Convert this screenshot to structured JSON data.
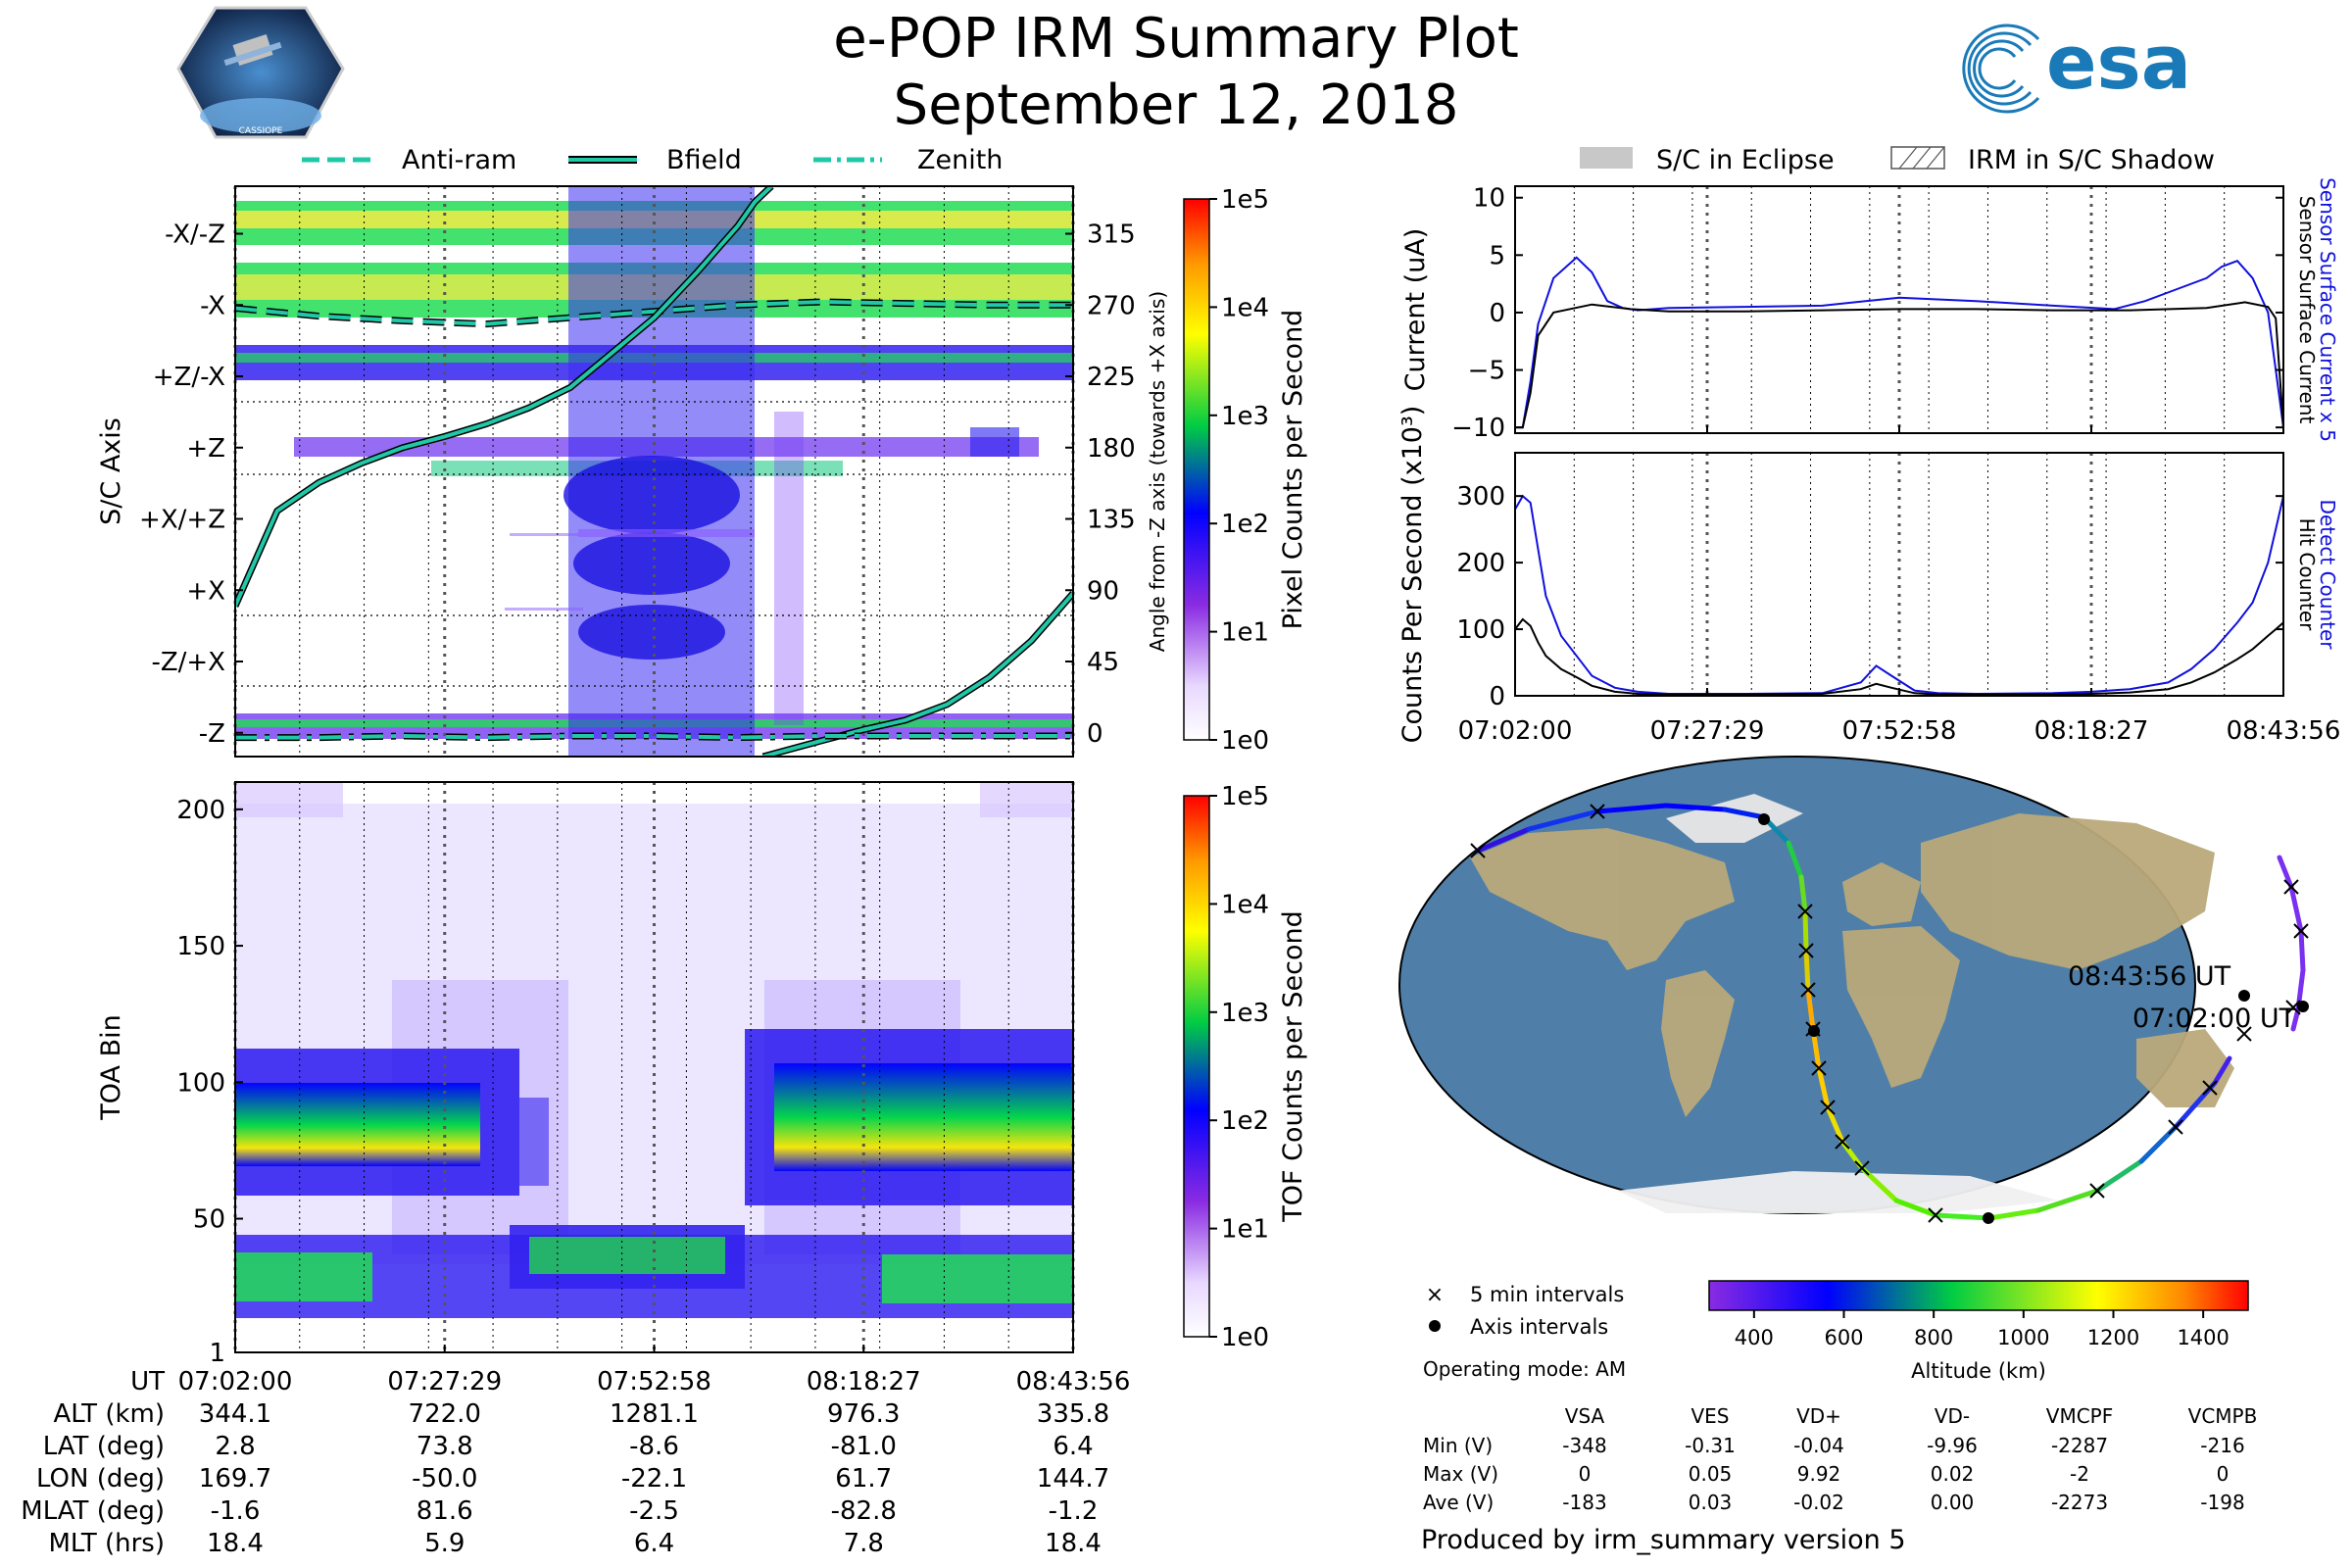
{
  "title": "e-POP IRM Summary Plot",
  "subtitle": "September 12, 2018",
  "logos": {
    "cassiope": "CASSIOPE",
    "esa": "esa"
  },
  "colors": {
    "accent": "#1a7ab8",
    "bfield": "#20c8a8",
    "current_blue": "#1010dd",
    "black": "#000000"
  },
  "chart_data": [
    {
      "id": "sc_axis_panel",
      "type": "heatmap",
      "ylabel": "S/C Axis",
      "y2label": "Angle from -Z axis (towards +X axis)",
      "colorbar_label": "Pixel Counts per Second",
      "colorbar_ticks": [
        "1e0",
        "1e1",
        "1e2",
        "1e3",
        "1e4",
        "1e5"
      ],
      "axis_labels": [
        "-X/-Z",
        "-X",
        "+Z/-X",
        "+Z",
        "+X/+Z",
        "+X",
        "-Z/+X",
        "-Z"
      ],
      "angles": [
        "315",
        "270",
        "225",
        "180",
        "135",
        "90",
        "45",
        "0"
      ],
      "ylim": [
        -15,
        345
      ],
      "legend": [
        "Anti-ram",
        "Bfield",
        "Zenith"
      ],
      "series": [
        {
          "name": "Anti-ram",
          "style": "dashed",
          "x": [
            0,
            10,
            20,
            30,
            40,
            50,
            60,
            70,
            80,
            90,
            100
          ],
          "y": [
            268,
            263,
            260,
            258,
            262,
            266,
            270,
            272,
            271,
            270,
            270
          ]
        },
        {
          "name": "Bfield",
          "style": "solid",
          "x": [
            0,
            5,
            10,
            15,
            20,
            25,
            30,
            35,
            40,
            45,
            50,
            55,
            60,
            62,
            64
          ],
          "y": [
            80,
            140,
            158,
            170,
            180,
            187,
            195,
            205,
            218,
            240,
            262,
            290,
            320,
            335,
            345
          ]
        },
        {
          "name": "Bfield",
          "style": "solid",
          "x": [
            63,
            70,
            75,
            80,
            85,
            90,
            95,
            100
          ],
          "y": [
            -15,
            -5,
            2,
            8,
            18,
            35,
            58,
            88
          ]
        },
        {
          "name": "Zenith",
          "style": "dashdot",
          "x": [
            0,
            10,
            20,
            30,
            40,
            50,
            60,
            70,
            80,
            90,
            100
          ],
          "y": [
            -3,
            -3,
            -2,
            -3,
            -2,
            -2,
            -3,
            -2,
            -2,
            -2,
            -2
          ]
        }
      ]
    },
    {
      "id": "toa_panel",
      "type": "heatmap",
      "ylabel": "TOA Bin",
      "colorbar_label": "TOF Counts per Second",
      "colorbar_ticks": [
        "1e0",
        "1e1",
        "1e2",
        "1e3",
        "1e4",
        "1e5"
      ],
      "yticks": [
        "1",
        "50",
        "100",
        "150",
        "200"
      ],
      "ylim": [
        1,
        210
      ],
      "xticks": [
        "07:02:00",
        "07:27:29",
        "07:52:58",
        "08:18:27",
        "08:43:56"
      ]
    },
    {
      "id": "current_panel",
      "type": "line",
      "ylabel": "Current (uA)",
      "y2label_blue": "Sensor Surface Current x 5",
      "y2label_black": "Sensor Surface Current",
      "yticks": [
        "10",
        "5",
        "0",
        "−5",
        "−10"
      ],
      "ylim": [
        -10.5,
        11
      ],
      "series": [
        {
          "name": "Sensor Surface Current x 5",
          "color": "#1010dd",
          "x": [
            0,
            1,
            2,
            3,
            5,
            8,
            10,
            12,
            14,
            16,
            20,
            30,
            40,
            50,
            60,
            70,
            78,
            82,
            86,
            90,
            92,
            94,
            96,
            98,
            99,
            100
          ],
          "y": [
            -10,
            -10,
            -6,
            -1,
            3,
            4.8,
            3.5,
            1,
            0.4,
            0.2,
            0.4,
            0.5,
            0.6,
            1.3,
            1,
            0.6,
            0.3,
            1,
            2,
            3,
            4,
            4.5,
            3,
            0,
            -5,
            -10
          ]
        },
        {
          "name": "Sensor Surface Current",
          "color": "#000000",
          "x": [
            0,
            1,
            2,
            3,
            5,
            10,
            15,
            20,
            30,
            40,
            50,
            60,
            70,
            80,
            90,
            95,
            98,
            99,
            100
          ],
          "y": [
            -10,
            -10,
            -7,
            -2,
            0,
            0.7,
            0.3,
            0.1,
            0.1,
            0.2,
            0.3,
            0.3,
            0.2,
            0.2,
            0.4,
            0.9,
            0.5,
            -0.5,
            -10
          ]
        }
      ]
    },
    {
      "id": "counts_panel",
      "type": "line",
      "ylabel": "Counts Per Second (x10³)",
      "y2label_blue": "Detect Counter",
      "y2label_black": "Hit Counter",
      "yticks": [
        "300",
        "200",
        "100",
        "0"
      ],
      "ylim": [
        0,
        365
      ],
      "xticks": [
        "07:02:00",
        "07:27:29",
        "07:52:58",
        "08:18:27",
        "08:43:56"
      ],
      "series": [
        {
          "name": "Detect Counter",
          "color": "#1010dd",
          "x": [
            0,
            1,
            2,
            3,
            4,
            6,
            8,
            10,
            13,
            16,
            20,
            30,
            40,
            45,
            47,
            49,
            52,
            55,
            60,
            70,
            75,
            80,
            85,
            88,
            91,
            94,
            96,
            98,
            99,
            100
          ],
          "y": [
            280,
            300,
            290,
            220,
            150,
            90,
            60,
            30,
            12,
            6,
            3,
            3,
            4,
            20,
            45,
            30,
            8,
            4,
            3,
            4,
            6,
            10,
            20,
            40,
            70,
            110,
            140,
            200,
            250,
            300
          ]
        },
        {
          "name": "Hit Counter",
          "color": "#000000",
          "x": [
            0,
            1,
            2,
            3,
            4,
            6,
            8,
            10,
            13,
            16,
            20,
            30,
            40,
            45,
            47,
            49,
            52,
            55,
            60,
            70,
            75,
            80,
            85,
            88,
            91,
            94,
            96,
            98,
            99,
            100
          ],
          "y": [
            100,
            115,
            105,
            80,
            60,
            40,
            28,
            15,
            6,
            3,
            2,
            2,
            3,
            10,
            18,
            12,
            4,
            2,
            2,
            2,
            3,
            5,
            10,
            20,
            35,
            55,
            70,
            90,
            100,
            110
          ]
        }
      ]
    },
    {
      "id": "orbit_map",
      "type": "scatter",
      "description_legend": [
        "5 min intervals",
        "Axis intervals"
      ],
      "colorbar_label": "Altitude (km)",
      "colorbar_ticks": [
        "400",
        "600",
        "800",
        "1000",
        "1200",
        "1400"
      ],
      "annotations": [
        "08:43:56 UT",
        "07:02:00 UT"
      ]
    }
  ],
  "top_legend": {
    "eclipse": "S/C in Eclipse",
    "shadow": "IRM in S/C Shadow"
  },
  "time_table": {
    "row_labels": [
      "UT",
      "ALT (km)",
      "LAT (deg)",
      "LON (deg)",
      "MLAT (deg)",
      "MLT (hrs)"
    ],
    "columns": [
      [
        "07:02:00",
        "344.1",
        "2.8",
        "169.7",
        "-1.6",
        "18.4"
      ],
      [
        "07:27:29",
        "722.0",
        "73.8",
        "-50.0",
        "81.6",
        "5.9"
      ],
      [
        "07:52:58",
        "1281.1",
        "-8.6",
        "-22.1",
        "-2.5",
        "6.4"
      ],
      [
        "08:18:27",
        "976.3",
        "-81.0",
        "61.7",
        "-82.8",
        "7.8"
      ],
      [
        "08:43:56",
        "335.8",
        "6.4",
        "144.7",
        "-1.2",
        "18.4"
      ]
    ]
  },
  "operating_mode": "Operating mode: AM",
  "voltage_table": {
    "headers": [
      "VSA",
      "VES",
      "VD+",
      "VD-",
      "VMCPF",
      "VCMPB"
    ],
    "rows": [
      {
        "label": "Min (V)",
        "values": [
          "-348",
          "-0.31",
          "-0.04",
          "-9.96",
          "-2287",
          "-216"
        ]
      },
      {
        "label": "Max (V)",
        "values": [
          "0",
          "0.05",
          "9.92",
          "0.02",
          "-2",
          "0"
        ]
      },
      {
        "label": "Ave (V)",
        "values": [
          "-183",
          "0.03",
          "-0.02",
          "0.00",
          "-2273",
          "-198"
        ]
      }
    ]
  },
  "footer": "Produced by irm_summary version 5"
}
